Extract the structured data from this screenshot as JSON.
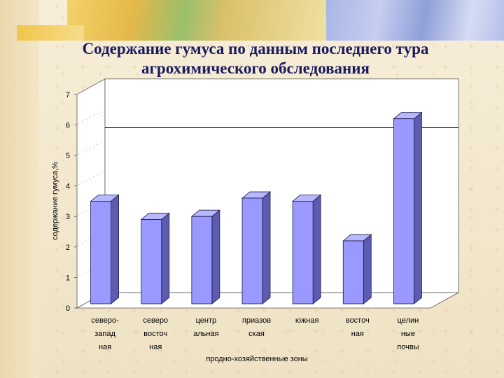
{
  "slide": {
    "title_line1": "Содержание гумуса по данным  последнего тура",
    "title_line2": "агрохимического обследования"
  },
  "chart_data": {
    "type": "bar",
    "title": "",
    "ylabel": "содержание гумуса,%",
    "xlabel": "продно-хозяйственные зоны",
    "ylim": [
      0,
      7
    ],
    "y_ticks": [
      "0",
      "1",
      "2",
      "3",
      "4",
      "5",
      "6",
      "7"
    ],
    "categories": [
      [
        "северо-",
        "запад",
        "ная"
      ],
      [
        "северо",
        "восточ",
        "ная"
      ],
      [
        "центр",
        "альная"
      ],
      [
        "приазов",
        "ская"
      ],
      [
        "южная"
      ],
      [
        "восточ",
        "ная"
      ],
      [
        "целин",
        "ные",
        "почвы"
      ]
    ],
    "values": [
      3.5,
      2.9,
      3.0,
      3.6,
      3.5,
      2.2,
      6.2
    ],
    "reference_line": 5.4,
    "colors": {
      "bar_front": "#9999ff",
      "bar_top": "#b8b8ff",
      "bar_side": "#5c5cb0",
      "edge": "#1a1a4a"
    },
    "grid": false
  }
}
